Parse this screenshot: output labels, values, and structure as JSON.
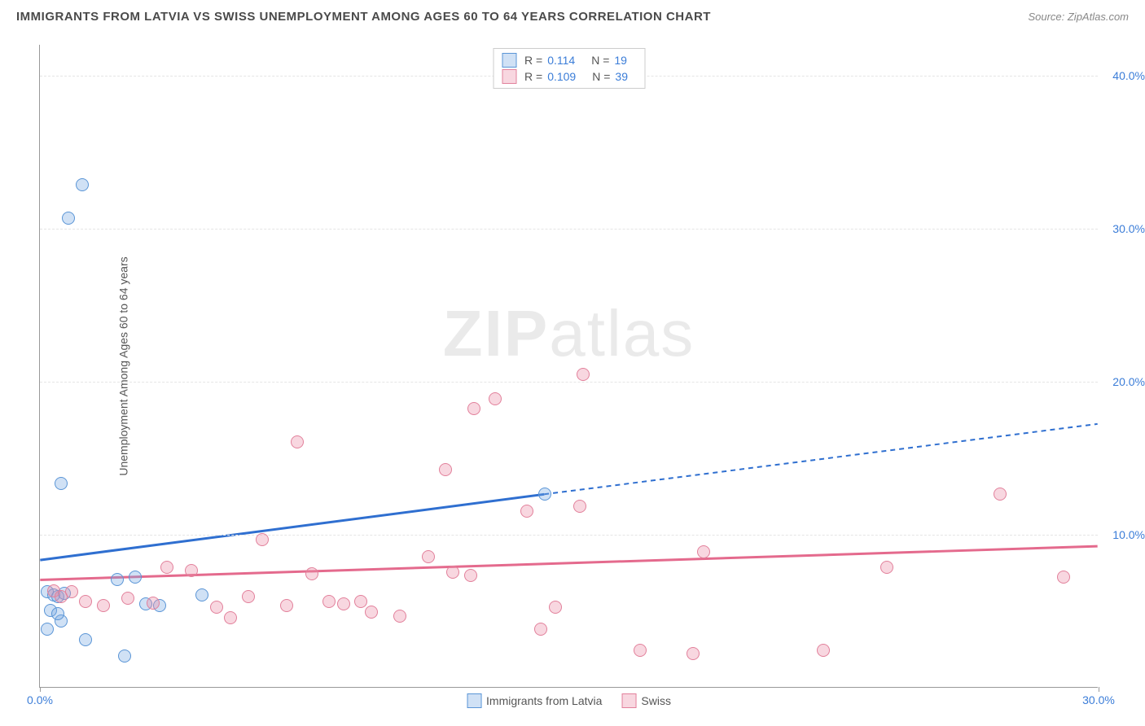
{
  "title": "IMMIGRANTS FROM LATVIA VS SWISS UNEMPLOYMENT AMONG AGES 60 TO 64 YEARS CORRELATION CHART",
  "source": "Source: ZipAtlas.com",
  "watermark": "ZIPatlas",
  "y_axis_label": "Unemployment Among Ages 60 to 64 years",
  "chart": {
    "type": "scatter",
    "xlim": [
      0,
      30
    ],
    "ylim": [
      0,
      42
    ],
    "x_ticks": [
      0,
      30
    ],
    "x_tick_labels": [
      "0.0%",
      "30.0%"
    ],
    "y_ticks": [
      10,
      20,
      30,
      40
    ],
    "y_tick_labels": [
      "10.0%",
      "20.0%",
      "30.0%",
      "40.0%"
    ],
    "background_color": "#ffffff",
    "grid_color": "#e5e5e5",
    "axis_color": "#999999",
    "tick_label_color": "#3b7dd8",
    "point_radius": 8,
    "series": [
      {
        "name": "Immigrants from Latvia",
        "key": "latvia",
        "fill": "rgba(120,170,225,0.35)",
        "stroke": "#5a95d6",
        "trend_color": "#2f6fd0",
        "R": "0.114",
        "N": "19",
        "trend": {
          "x1": 0,
          "y1": 8.3,
          "x2": 14.3,
          "y2": 12.6,
          "extend_x2": 30,
          "extend_y2": 17.2
        },
        "points": [
          [
            1.2,
            32.8
          ],
          [
            0.8,
            30.6
          ],
          [
            0.6,
            13.3
          ],
          [
            0.2,
            6.2
          ],
          [
            0.4,
            6.0
          ],
          [
            0.5,
            5.9
          ],
          [
            0.7,
            6.1
          ],
          [
            0.3,
            5.0
          ],
          [
            0.6,
            4.3
          ],
          [
            1.3,
            3.1
          ],
          [
            2.4,
            2.0
          ],
          [
            2.2,
            7.0
          ],
          [
            2.7,
            7.2
          ],
          [
            3.0,
            5.4
          ],
          [
            3.4,
            5.3
          ],
          [
            4.6,
            6.0
          ],
          [
            0.2,
            3.8
          ],
          [
            0.5,
            4.8
          ],
          [
            14.3,
            12.6
          ]
        ]
      },
      {
        "name": "Swiss",
        "key": "swiss",
        "fill": "rgba(235,140,165,0.35)",
        "stroke": "#e2809b",
        "trend_color": "#e46a8d",
        "R": "0.109",
        "N": "39",
        "trend": {
          "x1": 0,
          "y1": 7.0,
          "x2": 30,
          "y2": 9.2,
          "extend_x2": 30,
          "extend_y2": 9.2
        },
        "points": [
          [
            0.4,
            6.3
          ],
          [
            0.6,
            5.9
          ],
          [
            0.9,
            6.2
          ],
          [
            1.3,
            5.6
          ],
          [
            1.8,
            5.3
          ],
          [
            2.5,
            5.8
          ],
          [
            3.2,
            5.5
          ],
          [
            3.6,
            7.8
          ],
          [
            4.3,
            7.6
          ],
          [
            5.0,
            5.2
          ],
          [
            5.4,
            4.5
          ],
          [
            5.9,
            5.9
          ],
          [
            6.3,
            9.6
          ],
          [
            7.0,
            5.3
          ],
          [
            7.3,
            16.0
          ],
          [
            7.7,
            7.4
          ],
          [
            8.2,
            5.6
          ],
          [
            8.6,
            5.4
          ],
          [
            9.1,
            5.6
          ],
          [
            9.4,
            4.9
          ],
          [
            10.2,
            4.6
          ],
          [
            11.0,
            8.5
          ],
          [
            11.5,
            14.2
          ],
          [
            11.7,
            7.5
          ],
          [
            12.2,
            7.3
          ],
          [
            12.3,
            18.2
          ],
          [
            12.9,
            18.8
          ],
          [
            13.8,
            11.5
          ],
          [
            14.2,
            3.8
          ],
          [
            14.6,
            5.2
          ],
          [
            15.3,
            11.8
          ],
          [
            15.4,
            20.4
          ],
          [
            17.0,
            2.4
          ],
          [
            18.5,
            2.2
          ],
          [
            18.8,
            8.8
          ],
          [
            22.2,
            2.4
          ],
          [
            24.0,
            7.8
          ],
          [
            27.2,
            12.6
          ],
          [
            29.0,
            7.2
          ]
        ]
      }
    ]
  },
  "stats_legend_labels": {
    "R": "R =",
    "N": "N ="
  },
  "series_legend": [
    {
      "label": "Immigrants from Latvia",
      "fill": "rgba(120,170,225,0.35)",
      "stroke": "#5a95d6"
    },
    {
      "label": "Swiss",
      "fill": "rgba(235,140,165,0.35)",
      "stroke": "#e2809b"
    }
  ]
}
